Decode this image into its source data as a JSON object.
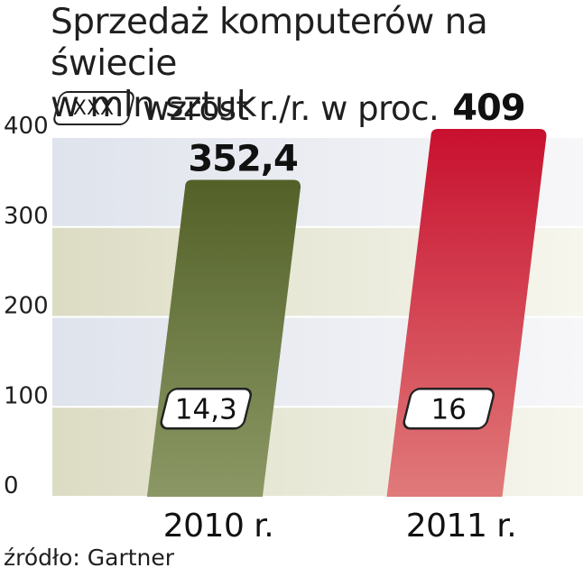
{
  "header": {
    "title_line1": "Sprzedaż komputerów na świecie",
    "title_line2": "w mln sztuk"
  },
  "legend": {
    "box_label": "XXX",
    "text": "wzrost r./r. w proc."
  },
  "source": "źródło: Gartner",
  "colors": {
    "bar_2010_top": "#536128",
    "bar_2010_bottom": "#8b9865",
    "bar_2011_top": "#c8102e",
    "bar_2011_bottom": "#e07a7a",
    "band_light_top": "#dfe3ec",
    "band_olive": "#dcdcc4"
  },
  "chart_data": {
    "type": "bar",
    "title": "Sprzedaż komputerów na świecie",
    "ylabel": "w mln sztuk",
    "categories": [
      "2010 r.",
      "2011 r."
    ],
    "values": [
      352.4,
      409
    ],
    "value_labels": [
      "352,4",
      "409"
    ],
    "growth_labels": [
      "14,3",
      "16"
    ],
    "growth_values": [
      14.3,
      16
    ],
    "yticks": [
      0,
      100,
      200,
      300,
      400
    ],
    "ylim": [
      0,
      400
    ],
    "grid": true
  }
}
